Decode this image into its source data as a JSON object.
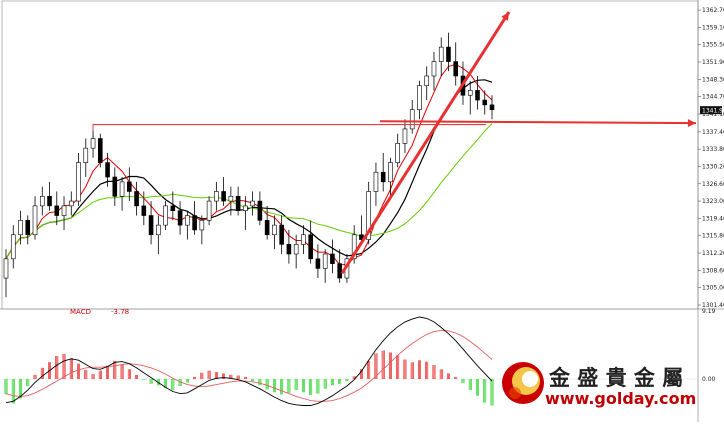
{
  "chart_data": {
    "type": "candlestick",
    "price_panel": {
      "ylim": [
        1301.4,
        1362.3
      ],
      "y_tick_labels": [
        "1362.70",
        "1359.10",
        "1355.50",
        "1351.90",
        "1348.30",
        "1344.70",
        "1341.10",
        "1337.40",
        "1333.80",
        "1330.20",
        "1326.60",
        "1323.00",
        "1319.40",
        "1315.80",
        "1312.20",
        "1308.60",
        "1305.00",
        "1301.40"
      ],
      "y_tick_values": [
        1362.7,
        1359.1,
        1355.5,
        1351.9,
        1348.3,
        1344.7,
        1341.1,
        1337.4,
        1333.8,
        1330.2,
        1326.6,
        1323.0,
        1319.4,
        1315.8,
        1312.2,
        1308.6,
        1305.0,
        1301.4
      ],
      "current_price_label": "1341.90",
      "current_price": 1341.9,
      "candles": [
        [
          1307,
          1313,
          1303,
          1311
        ],
        [
          1311,
          1318,
          1309,
          1316
        ],
        [
          1316,
          1321,
          1314,
          1319
        ],
        [
          1319,
          1320,
          1314,
          1316
        ],
        [
          1316,
          1324,
          1315,
          1322
        ],
        [
          1322,
          1326,
          1320,
          1324
        ],
        [
          1324,
          1327,
          1321,
          1322
        ],
        [
          1322,
          1325,
          1318,
          1320
        ],
        [
          1320,
          1324,
          1317,
          1322
        ],
        [
          1322,
          1325,
          1320,
          1323
        ],
        [
          1323,
          1333,
          1322,
          1331
        ],
        [
          1331,
          1336,
          1328,
          1334
        ],
        [
          1334,
          1339,
          1332,
          1336
        ],
        [
          1336,
          1337,
          1330,
          1331
        ],
        [
          1331,
          1333,
          1326,
          1328
        ],
        [
          1328,
          1330,
          1322,
          1324
        ],
        [
          1324,
          1328,
          1321,
          1327
        ],
        [
          1327,
          1330,
          1323,
          1325
        ],
        [
          1325,
          1327,
          1320,
          1322
        ],
        [
          1322,
          1325,
          1318,
          1320
        ],
        [
          1320,
          1323,
          1314,
          1316
        ],
        [
          1316,
          1320,
          1312,
          1318
        ],
        [
          1318,
          1323,
          1317,
          1322
        ],
        [
          1322,
          1325,
          1319,
          1321
        ],
        [
          1321,
          1323,
          1316,
          1318
        ],
        [
          1318,
          1321,
          1315,
          1320
        ],
        [
          1320,
          1323,
          1316,
          1317
        ],
        [
          1317,
          1320,
          1314,
          1319
        ],
        [
          1319,
          1324,
          1318,
          1323
        ],
        [
          1323,
          1327,
          1321,
          1325
        ],
        [
          1325,
          1328,
          1322,
          1323
        ],
        [
          1323,
          1326,
          1320,
          1324
        ],
        [
          1324,
          1326,
          1320,
          1321
        ],
        [
          1321,
          1324,
          1317,
          1322
        ],
        [
          1322,
          1325,
          1320,
          1323
        ],
        [
          1323,
          1325,
          1318,
          1319
        ],
        [
          1319,
          1322,
          1315,
          1316
        ],
        [
          1316,
          1320,
          1313,
          1318
        ],
        [
          1318,
          1320,
          1312,
          1314
        ],
        [
          1314,
          1317,
          1310,
          1312
        ],
        [
          1312,
          1316,
          1309,
          1314
        ],
        [
          1314,
          1318,
          1312,
          1316
        ],
        [
          1316,
          1319,
          1310,
          1311
        ],
        [
          1311,
          1314,
          1307,
          1309
        ],
        [
          1309,
          1313,
          1306,
          1312
        ],
        [
          1312,
          1315,
          1308,
          1310
        ],
        [
          1310,
          1313,
          1306,
          1307
        ],
        [
          1307,
          1312,
          1306,
          1311
        ],
        [
          1311,
          1318,
          1310,
          1316
        ],
        [
          1316,
          1320,
          1314,
          1315
        ],
        [
          1315,
          1327,
          1314,
          1325
        ],
        [
          1325,
          1331,
          1322,
          1329
        ],
        [
          1329,
          1333,
          1325,
          1327
        ],
        [
          1327,
          1332,
          1324,
          1331
        ],
        [
          1331,
          1337,
          1330,
          1335
        ],
        [
          1335,
          1340,
          1333,
          1338
        ],
        [
          1338,
          1344,
          1337,
          1342
        ],
        [
          1342,
          1348,
          1340,
          1347
        ],
        [
          1347,
          1351,
          1344,
          1349
        ],
        [
          1349,
          1354,
          1346,
          1352
        ],
        [
          1352,
          1357,
          1349,
          1355
        ],
        [
          1355,
          1358,
          1350,
          1352
        ],
        [
          1352,
          1356,
          1347,
          1349
        ],
        [
          1349,
          1352,
          1343,
          1345
        ],
        [
          1345,
          1348,
          1341,
          1346
        ],
        [
          1346,
          1349,
          1342,
          1344
        ],
        [
          1344,
          1346,
          1341,
          1343
        ],
        [
          1343,
          1345,
          1340,
          1342
        ]
      ],
      "annotations": {
        "horizontal_support": 1338.9,
        "trend_arrow_start_price": 1308.0,
        "trend_arrow_end_price": 1362.3,
        "horizontal_arrow_start_price": 1339.6,
        "horizontal_arrow_end_price": 1339.2
      },
      "series": [
        {
          "color": "#000000"
        },
        {
          "color": "#e00000"
        },
        {
          "color": "#66cc00"
        }
      ]
    },
    "macd_panel": {
      "label": "MACD",
      "value_label": "-3.78",
      "y_tick_labels": [
        "9.19",
        "0.00"
      ],
      "ylim": [
        -5.6,
        9.19
      ],
      "histogram": [
        -2.2,
        -3.5,
        -2.8,
        -1.0,
        0.6,
        1.6,
        2.4,
        3.3,
        3.6,
        3.0,
        2.2,
        1.3,
        0.7,
        1.2,
        1.9,
        2.6,
        2.1,
        1.4,
        0.6,
        -0.1,
        -0.7,
        -0.9,
        -1.3,
        -1.6,
        -1.0,
        -0.5,
        0.3,
        0.9,
        1.2,
        1.0,
        0.8,
        0.6,
        0.5,
        0.3,
        -0.3,
        -0.9,
        -1.5,
        -1.9,
        -2.2,
        -2.0,
        -1.6,
        -1.9,
        -2.3,
        -2.1,
        -1.4,
        -0.9,
        -0.7,
        -0.3,
        0.4,
        1.4,
        2.6,
        3.7,
        4.1,
        3.8,
        3.4,
        2.8,
        2.4,
        2.7,
        2.5,
        2.0,
        1.4,
        0.8,
        0.3,
        -0.6,
        -1.6,
        -2.4,
        -3.4,
        -3.8
      ],
      "macd_line": [
        -3.4,
        -3.2,
        -2.5,
        -1.6,
        -0.5,
        0.4,
        1.2,
        2.0,
        2.6,
        2.9,
        2.7,
        2.1,
        1.5,
        1.4,
        1.8,
        2.4,
        2.5,
        2.2,
        1.6,
        0.9,
        0.2,
        -0.5,
        -1.2,
        -1.8,
        -2.1,
        -2.0,
        -1.4,
        -0.8,
        -0.2,
        0.1,
        0.2,
        0.1,
        -0.1,
        -0.4,
        -0.9,
        -1.4,
        -2.0,
        -2.6,
        -3.1,
        -3.5,
        -3.7,
        -3.8,
        -3.8,
        -3.5,
        -3.0,
        -2.4,
        -1.7,
        -1.0,
        -0.1,
        1.1,
        2.7,
        4.2,
        5.5,
        6.6,
        7.5,
        8.2,
        8.6,
        8.9,
        8.7,
        8.2,
        7.4,
        6.5,
        5.5,
        4.3,
        3.1,
        1.9,
        0.8,
        -0.3
      ],
      "signal_line": [
        -2.1,
        -2.4,
        -2.5,
        -2.4,
        -2.0,
        -1.5,
        -0.9,
        -0.3,
        0.3,
        0.9,
        1.3,
        1.6,
        1.7,
        1.7,
        1.8,
        1.9,
        2.1,
        2.2,
        2.1,
        1.9,
        1.6,
        1.2,
        0.7,
        0.1,
        -0.4,
        -0.8,
        -1.0,
        -1.1,
        -1.0,
        -0.8,
        -0.6,
        -0.4,
        -0.3,
        -0.3,
        -0.4,
        -0.6,
        -0.9,
        -1.3,
        -1.7,
        -2.1,
        -2.5,
        -2.8,
        -3.1,
        -3.2,
        -3.2,
        -3.1,
        -2.8,
        -2.4,
        -1.9,
        -1.3,
        -0.5,
        0.4,
        1.4,
        2.4,
        3.4,
        4.3,
        5.1,
        5.8,
        6.4,
        6.8,
        7.0,
        6.9,
        6.6,
        6.1,
        5.4,
        4.6,
        3.7,
        2.8
      ],
      "macd_line_color": "#000000",
      "signal_line_color": "#e06060",
      "pos_color": "#e00000",
      "neg_color": "#00cc00"
    }
  },
  "watermark": {
    "chinese_text": "金 盛 貴 金 屬",
    "url_text": "www.golday.com",
    "logo_name": "golday-logo"
  }
}
